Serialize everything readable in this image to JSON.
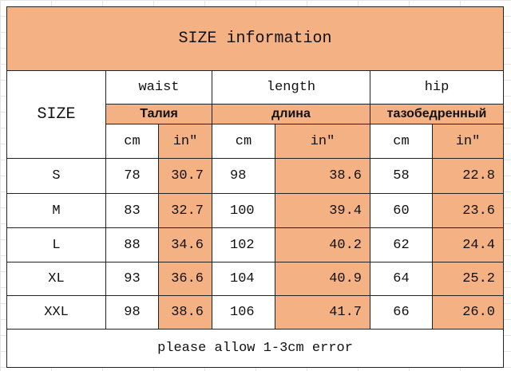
{
  "title": "SIZE information",
  "table": {
    "corner": "SIZE",
    "groups": [
      {
        "en": "waist",
        "ru": "Талия"
      },
      {
        "en": "length",
        "ru": "длина"
      },
      {
        "en": "hip",
        "ru": "тазобедренный"
      }
    ],
    "units": [
      "cm",
      "in″",
      "cm",
      "in″",
      "cm",
      "in″"
    ],
    "rows": [
      [
        "S",
        "78",
        "30.7",
        "98",
        "38.6",
        "58",
        "22.8"
      ],
      [
        "M",
        "83",
        "32.7",
        "100",
        "39.4",
        "60",
        "23.6"
      ],
      [
        "L",
        "88",
        "34.6",
        "102",
        "40.2",
        "62",
        "24.4"
      ],
      [
        "XL",
        "93",
        "36.6",
        "104",
        "40.9",
        "64",
        "25.2"
      ],
      [
        "XXL",
        "98",
        "38.6",
        "106",
        "41.7",
        "66",
        "26.0"
      ]
    ]
  },
  "footer": "please allow 1-3cm error"
}
